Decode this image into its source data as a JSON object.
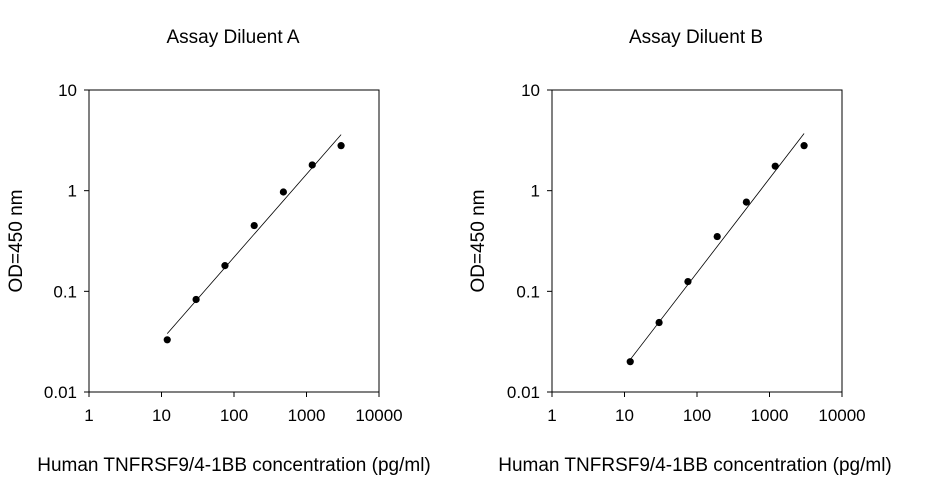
{
  "chart_data": [
    {
      "type": "scatter",
      "title": "Assay Diluent A",
      "xlabel": "Human TNFRSF9/4-1BB concentration (pg/ml)",
      "ylabel": "OD=450 nm",
      "xscale": "log",
      "yscale": "log",
      "xlim": [
        1,
        10000
      ],
      "ylim": [
        0.01,
        10
      ],
      "xticks": [
        "1",
        "10",
        "100",
        "1000",
        "10000"
      ],
      "yticks": [
        "0.01",
        "0.1",
        "1",
        "10"
      ],
      "grid": false,
      "series": [
        {
          "x": [
            12,
            30,
            75,
            190,
            480,
            1200,
            3000
          ],
          "y": [
            0.033,
            0.083,
            0.18,
            0.45,
            0.97,
            1.8,
            2.8
          ]
        }
      ],
      "fit_line": {
        "x": [
          12,
          3000
        ],
        "y": [
          0.038,
          3.6
        ]
      }
    },
    {
      "type": "scatter",
      "title": "Assay Diluent B",
      "xlabel": "Human TNFRSF9/4-1BB concentration (pg/ml)",
      "ylabel": "OD=450 nm",
      "xscale": "log",
      "yscale": "log",
      "xlim": [
        1,
        10000
      ],
      "ylim": [
        0.01,
        10
      ],
      "xticks": [
        "1",
        "10",
        "100",
        "1000",
        "10000"
      ],
      "yticks": [
        "0.01",
        "0.1",
        "1",
        "10"
      ],
      "grid": false,
      "series": [
        {
          "x": [
            12,
            30,
            75,
            190,
            480,
            1200,
            3000
          ],
          "y": [
            0.02,
            0.049,
            0.125,
            0.35,
            0.77,
            1.75,
            2.8
          ]
        }
      ],
      "fit_line": {
        "x": [
          12,
          3000
        ],
        "y": [
          0.021,
          3.7
        ]
      }
    }
  ]
}
